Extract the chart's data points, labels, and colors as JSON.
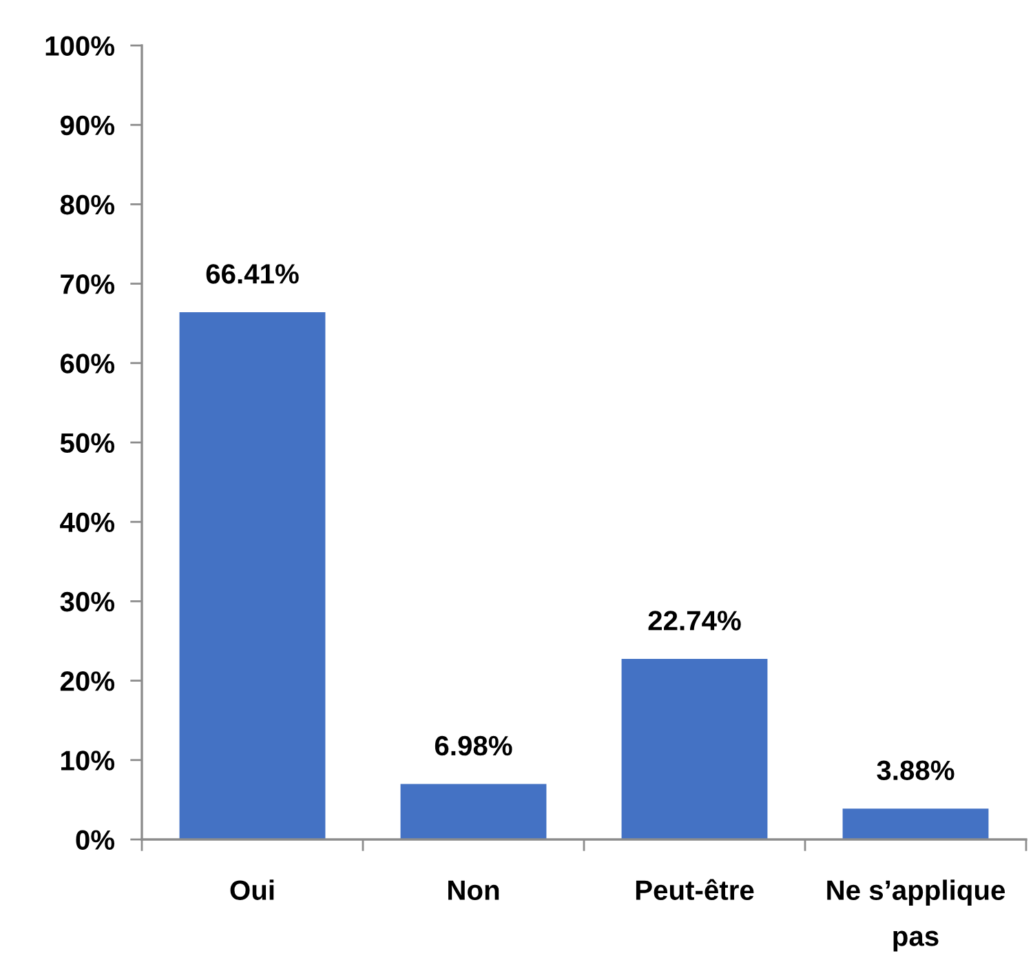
{
  "chart_data": {
    "type": "bar",
    "categories": [
      "Oui",
      "Non",
      "Peut-être",
      "Ne s’applique\npas"
    ],
    "values": [
      66.41,
      6.98,
      22.74,
      3.88
    ],
    "value_labels": [
      "66.41%",
      "6.98%",
      "22.74%",
      "3.88%"
    ],
    "color": "#4472c4",
    "ylim": [
      0,
      100
    ],
    "yticks": [
      {
        "value": 0,
        "label": "0%"
      },
      {
        "value": 10,
        "label": "10%"
      },
      {
        "value": 20,
        "label": "20%"
      },
      {
        "value": 30,
        "label": "30%"
      },
      {
        "value": 40,
        "label": "40%"
      },
      {
        "value": 50,
        "label": "50%"
      },
      {
        "value": 60,
        "label": "60%"
      },
      {
        "value": 70,
        "label": "70%"
      },
      {
        "value": 80,
        "label": "80%"
      },
      {
        "value": 90,
        "label": "90%"
      },
      {
        "value": 100,
        "label": "100%"
      }
    ],
    "grid": false,
    "legend": false
  }
}
